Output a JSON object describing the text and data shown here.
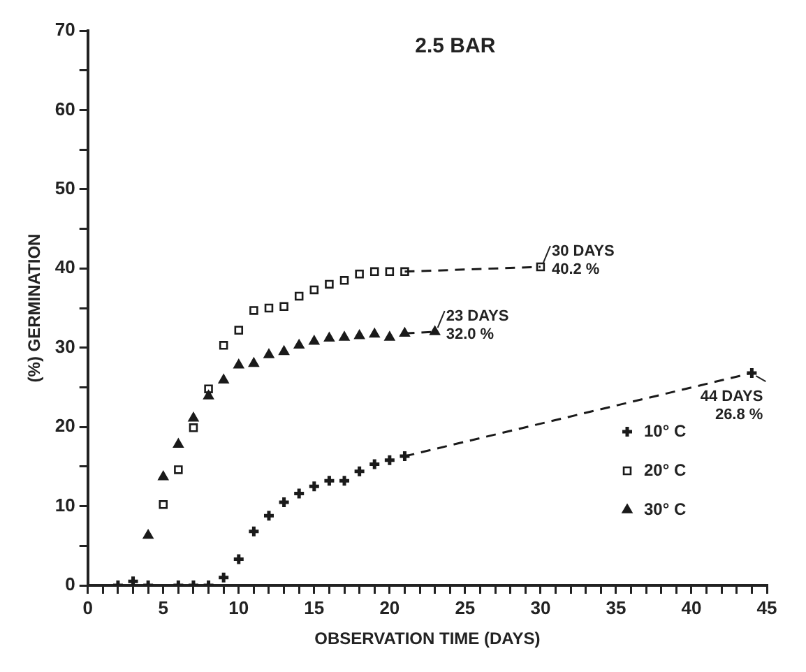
{
  "chart_data": {
    "type": "scatter",
    "title": "2.5 BAR",
    "xlabel": "OBSERVATION TIME (DAYS)",
    "ylabel": "(%) GERMINATION",
    "xlim": [
      0,
      45
    ],
    "ylim": [
      0,
      70
    ],
    "xticks": [
      0,
      {
        "value": 1,
        "label": null
      },
      {
        "value": 2,
        "label": null
      },
      {
        "value": 3,
        "label": null
      },
      {
        "value": 4,
        "label": null
      },
      5,
      {
        "value": 6,
        "label": null
      },
      {
        "value": 7,
        "label": null
      },
      {
        "value": 8,
        "label": null
      },
      {
        "value": 9,
        "label": null
      },
      10,
      {
        "value": 11,
        "label": null
      },
      {
        "value": 12,
        "label": null
      },
      {
        "value": 13,
        "label": null
      },
      {
        "value": 14,
        "label": null
      },
      15,
      {
        "value": 16,
        "label": null
      },
      {
        "value": 17,
        "label": null
      },
      {
        "value": 18,
        "label": null
      },
      {
        "value": 19,
        "label": null
      },
      20,
      {
        "value": 21,
        "label": null
      },
      {
        "value": 22,
        "label": null
      },
      {
        "value": 23,
        "label": null
      },
      {
        "value": 24,
        "label": null
      },
      25,
      {
        "value": 26,
        "label": null
      },
      {
        "value": 27,
        "label": null
      },
      {
        "value": 28,
        "label": null
      },
      {
        "value": 29,
        "label": null
      },
      30,
      {
        "value": 31,
        "label": null
      },
      {
        "value": 32,
        "label": null
      },
      {
        "value": 33,
        "label": null
      },
      {
        "value": 34,
        "label": null
      },
      35,
      {
        "value": 36,
        "label": null
      },
      {
        "value": 37,
        "label": null
      },
      {
        "value": 38,
        "label": null
      },
      {
        "value": 39,
        "label": null
      },
      40,
      {
        "value": 41,
        "label": null
      },
      {
        "value": 42,
        "label": null
      },
      {
        "value": 43,
        "label": null
      },
      {
        "value": 44,
        "label": null
      },
      45
    ],
    "yticks": [
      0,
      {
        "value": 5,
        "label": null
      },
      10,
      {
        "value": 15,
        "label": null
      },
      20,
      {
        "value": 25,
        "label": null
      },
      30,
      {
        "value": 35,
        "label": null
      },
      40,
      {
        "value": 45,
        "label": null
      },
      50,
      {
        "value": 55,
        "label": null
      },
      60,
      {
        "value": 65,
        "label": null
      },
      70
    ],
    "grid": false,
    "legend": "bottom right",
    "series": [
      {
        "name": "10° C",
        "color": "#1a1a1a",
        "marker": "cross",
        "x": [
          2,
          3,
          4,
          6,
          7,
          8,
          9,
          10,
          11,
          12,
          13,
          14,
          15,
          16,
          17,
          18,
          19,
          20,
          21,
          44
        ],
        "values": [
          0,
          0.5,
          0,
          0,
          0,
          0,
          1.0,
          3.3,
          6.8,
          8.8,
          10.5,
          11.6,
          12.5,
          13.2,
          13.2,
          14.4,
          15.3,
          15.8,
          16.3,
          26.8
        ]
      },
      {
        "name": "20° C",
        "color": "#1a1a1a",
        "marker": "square",
        "x": [
          5,
          6,
          7,
          8,
          9,
          10,
          11,
          12,
          13,
          14,
          15,
          16,
          17,
          18,
          19,
          20,
          21,
          30
        ],
        "values": [
          10.2,
          14.6,
          19.9,
          24.8,
          30.3,
          32.2,
          34.7,
          35.0,
          35.2,
          36.5,
          37.3,
          38.0,
          38.5,
          39.3,
          39.6,
          39.6,
          39.6,
          40.2
        ]
      },
      {
        "name": "30° C",
        "color": "#1a1a1a",
        "marker": "triangle",
        "x": [
          4,
          5,
          6,
          7,
          8,
          9,
          10,
          11,
          12,
          13,
          14,
          15,
          16,
          17,
          18,
          19,
          20,
          21,
          23
        ],
        "values": [
          6.3,
          13.7,
          17.8,
          21.1,
          23.9,
          25.9,
          27.8,
          28.0,
          29.1,
          29.5,
          30.3,
          30.8,
          31.2,
          31.3,
          31.5,
          31.7,
          31.3,
          31.8,
          32.0
        ]
      },
      {
        "type": "line",
        "color": "#1a1a1a",
        "line_style": "dashed",
        "marker": "none",
        "x": [
          21,
          44
        ],
        "values": [
          16.3,
          26.8
        ]
      },
      {
        "type": "line",
        "color": "#1a1a1a",
        "line_style": "dashed",
        "marker": "none",
        "x": [
          21,
          30
        ],
        "values": [
          39.6,
          40.2
        ]
      },
      {
        "type": "line",
        "color": "#1a1a1a",
        "line_style": "dashed",
        "marker": "none",
        "x": [
          21,
          23
        ],
        "values": [
          31.8,
          32.0
        ]
      }
    ],
    "annotations": [
      {
        "text": "30 DAYS\n40.2 %",
        "x": 30,
        "y": 40.2
      },
      {
        "text": "23 DAYS\n32.0 %",
        "x": 23,
        "y": 32.0
      },
      {
        "text": "44 DAYS\n26.8 %",
        "x": 44,
        "y": 26.8
      }
    ]
  }
}
